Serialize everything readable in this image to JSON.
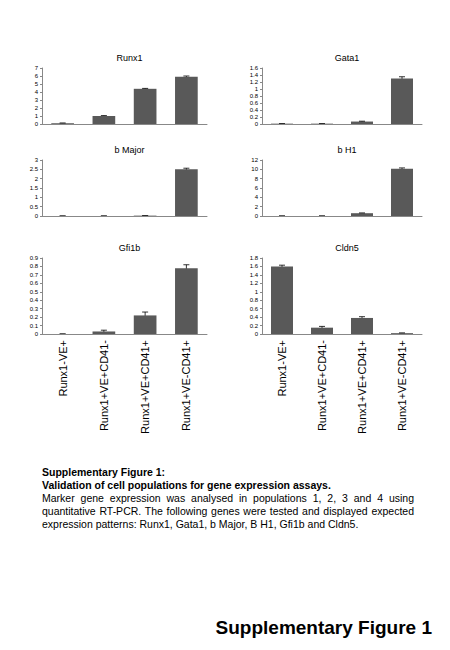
{
  "chart_data": [
    {
      "type": "bar",
      "title": "Runx1",
      "categories": [
        "Runx1-VE+",
        "Runx1+VE+CD41-",
        "Runx1+VE+CD41+",
        "Runx1+VE-CD41+"
      ],
      "values": [
        0.1,
        1.0,
        4.4,
        5.9
      ],
      "errors": [
        0.02,
        0.05,
        0.05,
        0.1
      ],
      "color": "#595959",
      "ylim": [
        0,
        7
      ],
      "yticks": [
        0,
        1,
        2,
        3,
        4,
        5,
        6,
        7
      ],
      "tick_labels": "y"
    },
    {
      "type": "bar",
      "title": "Gata1",
      "categories": [
        "Runx1-VE+",
        "Runx1+VE+CD41-",
        "Runx1+VE+CD41+",
        "Runx1+VE-CD41+"
      ],
      "values": [
        0.01,
        0.01,
        0.07,
        1.3
      ],
      "errors": [
        0.002,
        0.002,
        0.01,
        0.05
      ],
      "color": "#595959",
      "ylim": [
        0,
        1.6
      ],
      "yticks": [
        0,
        0.2,
        0.4,
        0.6,
        0.8,
        1,
        1.2,
        1.4,
        1.6
      ],
      "tick_labels": "y"
    },
    {
      "type": "bar",
      "title": "b Major",
      "categories": [
        "Runx1-VE+",
        "Runx1+VE+CD41-",
        "Runx1+VE+CD41+",
        "Runx1+VE-CD41+"
      ],
      "values": [
        0,
        0,
        0.02,
        2.5
      ],
      "errors": [
        0,
        0,
        0.005,
        0.06
      ],
      "color": "#595959",
      "ylim": [
        0,
        3
      ],
      "yticks": [
        0,
        0.5,
        1,
        1.5,
        2,
        2.5,
        3
      ],
      "tick_labels": "y"
    },
    {
      "type": "bar",
      "title": "b H1",
      "categories": [
        "Runx1-VE+",
        "Runx1+VE+CD41-",
        "Runx1+VE+CD41+",
        "Runx1+VE-CD41+"
      ],
      "values": [
        0,
        0,
        0.6,
        10.1
      ],
      "errors": [
        0,
        0,
        0.05,
        0.2
      ],
      "color": "#595959",
      "ylim": [
        0,
        12
      ],
      "yticks": [
        0,
        2,
        4,
        6,
        8,
        10,
        12
      ],
      "tick_labels": "y"
    },
    {
      "type": "bar",
      "title": "Gfi1b",
      "categories": [
        "Runx1-VE+",
        "Runx1+VE+CD41-",
        "Runx1+VE+CD41+",
        "Runx1+VE-CD41+"
      ],
      "values": [
        0,
        0.03,
        0.22,
        0.78
      ],
      "errors": [
        0,
        0.015,
        0.04,
        0.04
      ],
      "color": "#595959",
      "ylim": [
        0,
        0.9
      ],
      "yticks": [
        0,
        0.1,
        0.2,
        0.3,
        0.4,
        0.5,
        0.6,
        0.7,
        0.8,
        0.9
      ]
    },
    {
      "type": "bar",
      "title": "Cldn5",
      "categories": [
        "Runx1-VE+",
        "Runx1+VE+CD41-",
        "Runx1+VE+CD41+",
        "Runx1+VE-CD41+"
      ],
      "values": [
        1.6,
        0.15,
        0.38,
        0.02
      ],
      "errors": [
        0.03,
        0.03,
        0.03,
        0.005
      ],
      "color": "#595959",
      "ylim": [
        0,
        1.8
      ],
      "yticks": [
        0,
        0.2,
        0.4,
        0.6,
        0.8,
        1,
        1.2,
        1.4,
        1.6,
        1.8
      ]
    }
  ],
  "caption": {
    "title": "Supplementary Figure 1:",
    "subtitle": "Validation of cell populations for gene expression assays.",
    "text": "Marker gene expression was analysed in populations 1, 2, 3 and 4 using quantitative RT-PCR. The following genes were tested and displayed expected expression patterns: Runx1, Gata1, b Major, B H1, Gfi1b and Cldn5."
  },
  "footer": "Supplementary Figure 1"
}
